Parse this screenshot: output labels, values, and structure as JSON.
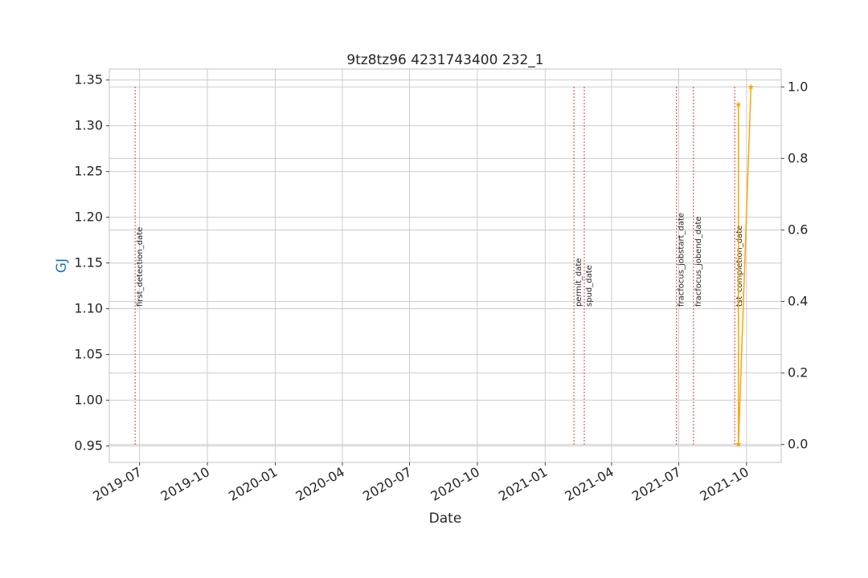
{
  "chart_data": {
    "type": "line",
    "title": "9tz8tz96 4231743400 232_1",
    "xlabel": "Date",
    "ylabel": "GJ",
    "ylabel_color": "#1f77b4",
    "x_ticks": [
      "2019-07",
      "2019-10",
      "2020-01",
      "2020-04",
      "2020-07",
      "2020-10",
      "2021-01",
      "2021-04",
      "2021-07",
      "2021-10"
    ],
    "xlim": [
      "2019-05-21",
      "2021-11-17"
    ],
    "ylim_left": [
      0.932,
      1.362
    ],
    "left_ticks": [
      "0.95",
      "1.00",
      "1.05",
      "1.10",
      "1.15",
      "1.20",
      "1.25",
      "1.30",
      "1.35"
    ],
    "ylim_right": [
      -0.05,
      1.05
    ],
    "right_ticks": [
      "0.0",
      "0.2",
      "0.4",
      "0.6",
      "0.8",
      "1.0"
    ],
    "grid": true,
    "series": [
      {
        "axis": "right",
        "color": "#ffa500",
        "marker": "star",
        "points": [
          {
            "x": "2021-09-20",
            "y": 0.0
          },
          {
            "x": "2021-09-20",
            "y": 0.95
          },
          {
            "x": "2021-09-20",
            "y": 0.0
          },
          {
            "x": "2021-10-07",
            "y": 1.0
          }
        ]
      }
    ],
    "events": [
      {
        "label": "first_detection_date",
        "x": "2019-06-25"
      },
      {
        "label": "permit_date",
        "x": "2021-02-09"
      },
      {
        "label": "spud_date",
        "x": "2021-02-23"
      },
      {
        "label": "fracfocus_jobstart_date",
        "x": "2021-06-28"
      },
      {
        "label": "fracfocus_jobend_date",
        "x": "2021-07-21"
      },
      {
        "label": "tst_completion_date",
        "x": "2021-09-15"
      }
    ],
    "event_color": "#d62728"
  }
}
